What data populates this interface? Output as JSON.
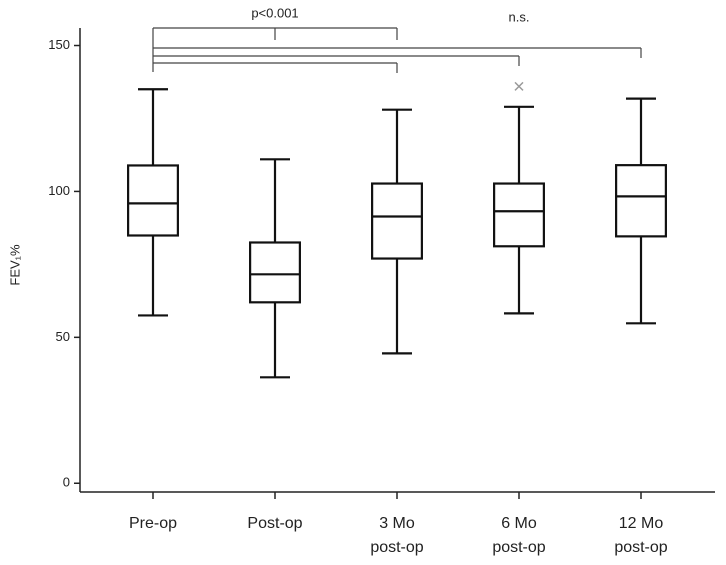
{
  "chart_data": {
    "type": "box",
    "y_label": "FEV₁%",
    "categories": [
      "Pre-op",
      "Post-op",
      "3 Mo\npost-op",
      "6 Mo\npost-op",
      "12 Mo\npost-op"
    ],
    "whisker_low": [
      57.5,
      36.3,
      44.5,
      58.2,
      54.8
    ],
    "q1": [
      84.9,
      62,
      77,
      81.2,
      84.6
    ],
    "median": [
      95.9,
      71.6,
      91.4,
      93.2,
      98.3
    ],
    "q3": [
      108.9,
      82.5,
      102.7,
      102.7,
      109
    ],
    "whisker_high": [
      135,
      111,
      128,
      129,
      131.8
    ],
    "outliers": [
      [],
      [],
      [],
      [
        136
      ],
      []
    ],
    "color": "#111111",
    "outlier_color": "#999999",
    "ylim": [
      -3,
      156
    ],
    "yticks": [
      0,
      50,
      100,
      150
    ],
    "annotations": [
      "p<0.001",
      "n.s."
    ]
  }
}
